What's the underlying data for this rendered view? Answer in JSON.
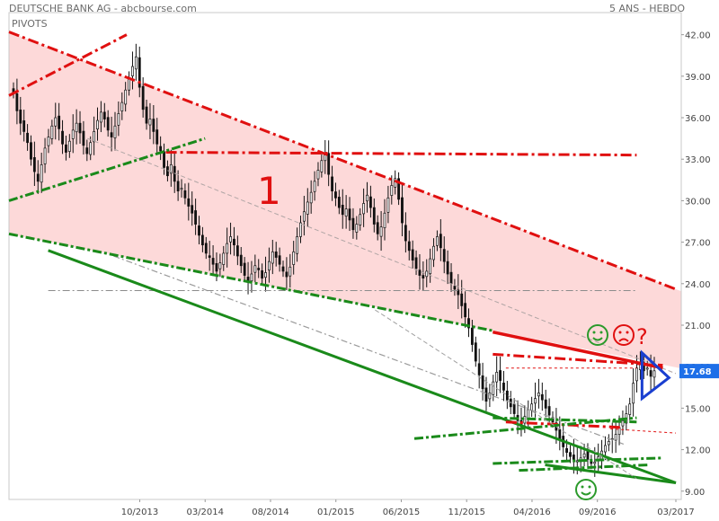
{
  "header": {
    "title": "DEUTSCHE BANK AG - abcbourse.com",
    "period": "5 ANS - HEBDO",
    "indicator": "PIVOTS"
  },
  "chart_data": {
    "type": "candlestick",
    "y_ticks": [
      42.0,
      39.0,
      36.0,
      33.0,
      30.0,
      27.0,
      24.0,
      21.0,
      18.0,
      15.0,
      12.0,
      9.0
    ],
    "y_tick_labels": [
      "42.00",
      "39.00",
      "36.00",
      "33.00",
      "30.00",
      "27.00",
      "24.00",
      "21.00",
      "18.00",
      "15.00",
      "12.00",
      "9.00"
    ],
    "ylim": [
      8.4,
      43.6
    ],
    "x_labels": [
      "10/2013",
      "03/2014",
      "08/2014",
      "01/2015",
      "06/2015",
      "11/2015",
      "04/2016",
      "09/2016",
      "03/2017"
    ],
    "last_price": "17.68",
    "annotations": {
      "zone_label": "1",
      "question_mark": "?"
    },
    "closes": [
      37.8,
      36.5,
      35.6,
      35.0,
      34.2,
      33.0,
      32.1,
      31.4,
      32.6,
      33.8,
      34.6,
      35.4,
      36.0,
      35.2,
      34.1,
      33.5,
      34.3,
      35.1,
      35.6,
      34.9,
      34.0,
      33.4,
      34.2,
      35.0,
      35.8,
      36.4,
      35.9,
      35.1,
      34.6,
      35.4,
      36.3,
      37.1,
      38.0,
      38.9,
      39.7,
      40.4,
      38.2,
      36.6,
      35.6,
      35.9,
      35.0,
      34.1,
      33.6,
      32.4,
      31.8,
      32.6,
      31.4,
      30.7,
      30.9,
      30.2,
      29.6,
      29.1,
      28.3,
      27.5,
      26.8,
      26.2,
      25.9,
      25.4,
      24.9,
      25.5,
      26.2,
      26.9,
      27.4,
      26.8,
      26.0,
      25.3,
      24.6,
      24.2,
      24.7,
      25.3,
      25.0,
      24.4,
      24.8,
      25.6,
      26.3,
      25.9,
      25.4,
      24.9,
      24.5,
      25.2,
      26.3,
      27.4,
      28.4,
      29.2,
      29.9,
      30.6,
      31.4,
      32.2,
      32.9,
      33.3,
      31.9,
      30.7,
      30.2,
      29.5,
      29.0,
      29.4,
      28.6,
      27.9,
      28.3,
      29.0,
      29.8,
      30.4,
      29.5,
      28.3,
      27.6,
      28.1,
      29.1,
      30.2,
      31.1,
      31.6,
      30.1,
      28.4,
      27.1,
      26.4,
      25.7,
      25.1,
      24.6,
      24.4,
      24.9,
      25.8,
      26.7,
      27.4,
      26.6,
      25.6,
      24.7,
      24.0,
      23.6,
      23.2,
      22.4,
      21.6,
      20.8,
      19.6,
      18.4,
      17.4,
      16.4,
      15.5,
      16.1,
      16.9,
      17.6,
      17.0,
      16.3,
      15.6,
      15.1,
      14.6,
      14.1,
      13.8,
      14.4,
      14.9,
      15.3,
      15.7,
      16.1,
      15.6,
      15.0,
      14.5,
      14.0,
      13.4,
      12.8,
      12.2,
      11.8,
      11.5,
      11.3,
      11.2,
      11.4,
      11.7,
      11.3,
      11.0,
      11.1,
      11.5,
      11.9,
      12.3,
      12.6,
      12.8,
      13.1,
      13.6,
      14.1,
      14.6,
      15.3,
      16.8,
      17.9,
      18.3,
      17.7,
      17.9,
      17.3,
      17.7
    ],
    "channel_upper_red": {
      "x": [
        "2012-12",
        "2017-03"
      ],
      "y": [
        42.2,
        23.6
      ]
    },
    "channel_lower_green": {
      "x": [
        "2012-12",
        "2016-01"
      ],
      "y": [
        27.6,
        20.6
      ]
    },
    "support_green_long": {
      "x": [
        "2013-03",
        "2017-03"
      ],
      "y": [
        26.4,
        9.6
      ]
    },
    "resistance_red_h1": {
      "x": [
        "2013-12",
        "2016-12"
      ],
      "y": [
        33.5,
        33.3
      ]
    },
    "resistance_red_short": {
      "x": [
        "2016-01",
        "2017-02"
      ],
      "y": [
        20.5,
        17.9
      ]
    },
    "wedge_upper": {
      "x": [
        "2012-12",
        "2013-09"
      ],
      "y": [
        37.6,
        42.0
      ]
    },
    "wedge_lower": {
      "x": [
        "2012-12",
        "2014-03"
      ],
      "y": [
        30.0,
        34.5
      ]
    },
    "pivot_gray_1": {
      "x": [
        "2013-08",
        "2016-11"
      ],
      "y": [
        26.0,
        12.4
      ]
    },
    "pivot_gray_2": {
      "x": [
        "2013-06",
        "2017-03"
      ],
      "y": [
        34.5,
        17.5
      ]
    },
    "pivot_flat": {
      "x": [
        "2013-03",
        "2016-12"
      ],
      "y": [
        23.5,
        23.5
      ]
    }
  }
}
